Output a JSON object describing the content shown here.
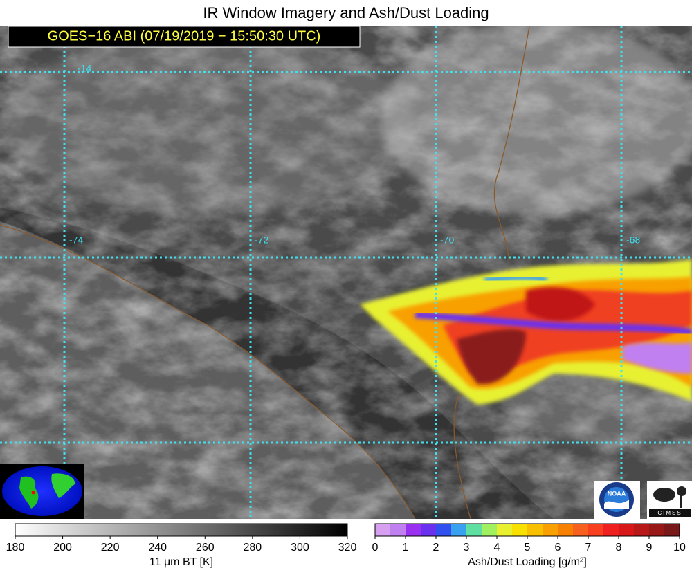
{
  "title": "IR Window Imagery and Ash/Dust Loading",
  "timestamp": "GOES−16 ABI (07/19/2019 − 15:50:30 UTC)",
  "map": {
    "latitude_labels": [
      -14
    ],
    "longitude_labels": [
      -74,
      -72,
      -70,
      -68
    ]
  },
  "bt_colorbar": {
    "range": [
      180,
      320
    ],
    "ticks": [
      180,
      200,
      220,
      240,
      260,
      280,
      300,
      320
    ],
    "label": "11 μm BT [K]"
  },
  "ash_colorbar": {
    "range": [
      0,
      10
    ],
    "ticks": [
      0,
      1,
      2,
      3,
      4,
      5,
      6,
      7,
      8,
      9,
      10
    ],
    "label": "Ash/Dust Loading [g/m²]",
    "colors": [
      "#d7a0f0",
      "#c080f0",
      "#9a30f0",
      "#6a30f0",
      "#3050f0",
      "#3aa0f0",
      "#60e0a0",
      "#a0f060",
      "#e8f030",
      "#f8e000",
      "#f8c000",
      "#f8a000",
      "#f88000",
      "#f86020",
      "#f84020",
      "#f02020",
      "#d81818",
      "#b81818",
      "#981818",
      "#781818"
    ]
  },
  "logos": {
    "noaa": "NOAA",
    "cimss": "CIMSS"
  }
}
